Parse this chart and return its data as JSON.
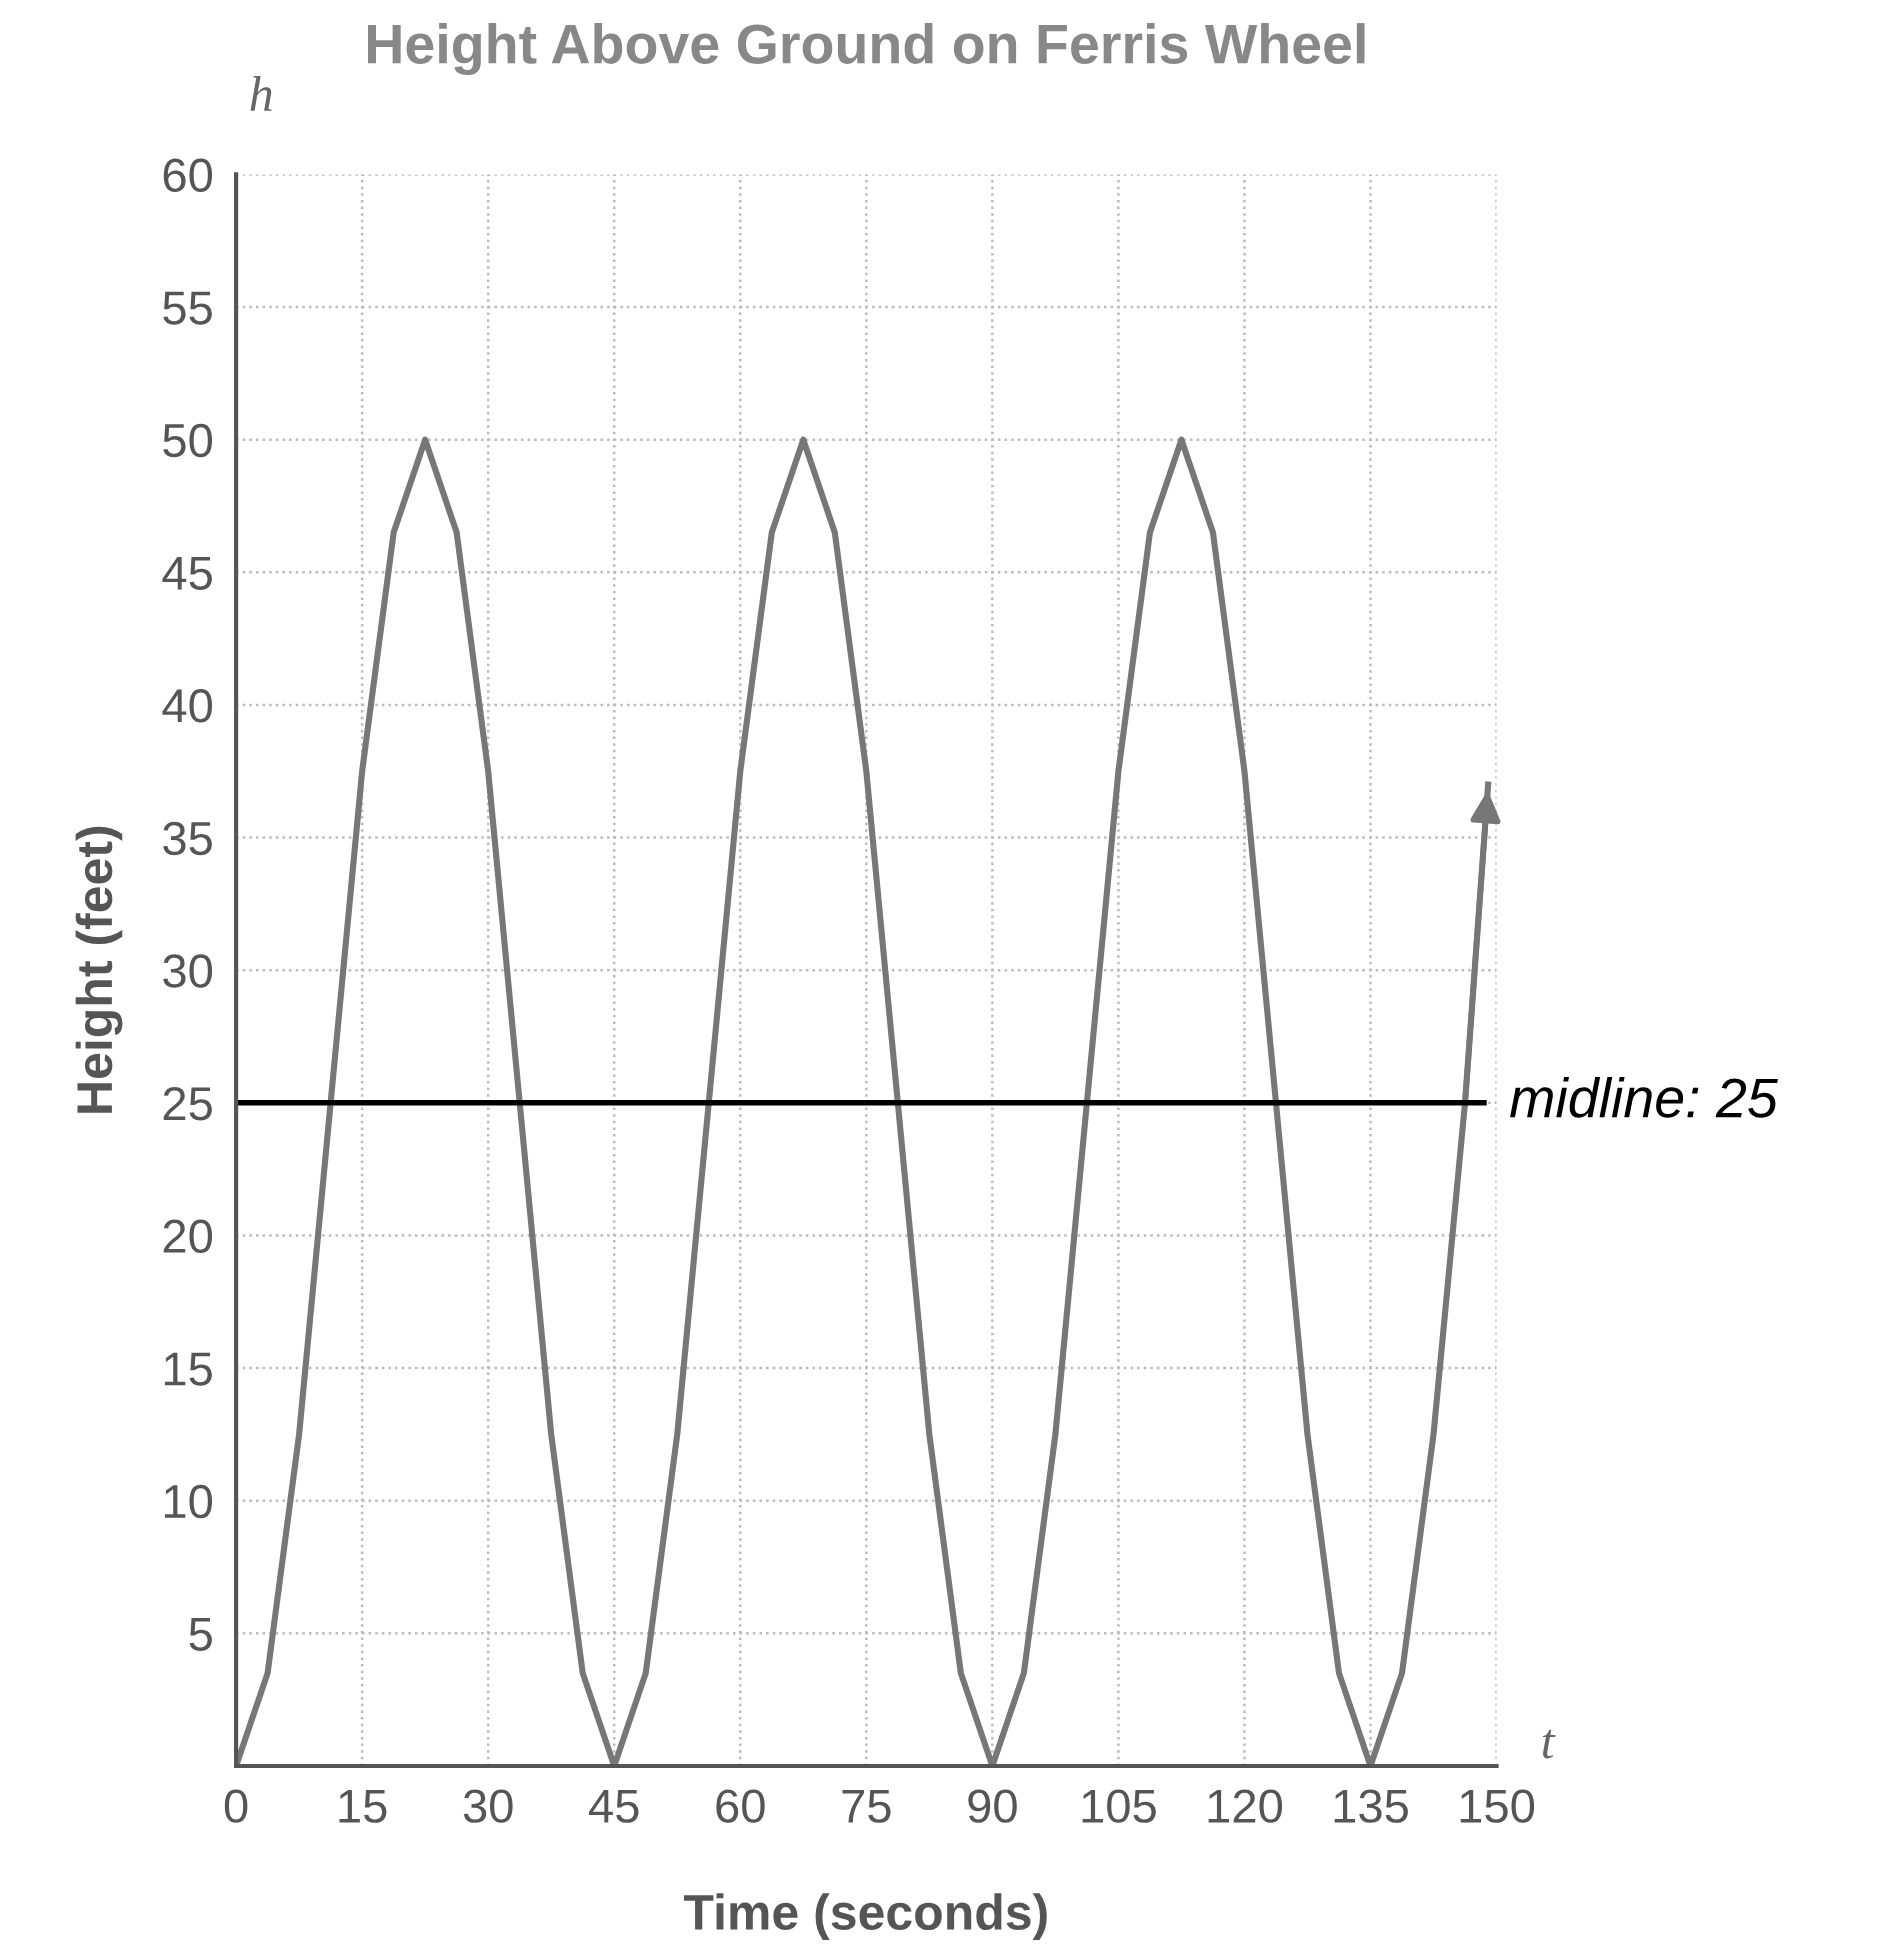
{
  "chart_data": {
    "type": "line",
    "title": "Height Above Ground on Ferris Wheel",
    "xlabel": "Time (seconds)",
    "ylabel": "Height (feet)",
    "annotations": [
      "h",
      "t"
    ],
    "x": [
      0,
      3.75,
      7.5,
      11.25,
      15,
      18.75,
      22.5,
      26.25,
      30,
      33.75,
      37.5,
      41.25,
      45,
      48.75,
      52.5,
      56.25,
      60,
      63.75,
      67.5,
      71.25,
      75,
      78.75,
      82.5,
      86.25,
      90,
      93.75,
      97.5,
      101.25,
      105,
      108.75,
      112.5,
      116.25,
      120,
      123.75,
      127.5,
      131.25,
      135,
      138.75,
      142.5,
      146.25,
      149
    ],
    "series": [
      {
        "color": "#777777",
        "values": [
          0,
          3.5,
          12.5,
          25,
          37.5,
          46.5,
          50,
          46.5,
          37.5,
          25,
          12.5,
          3.5,
          0,
          3.5,
          12.5,
          25,
          37.5,
          46.5,
          50,
          46.5,
          37.5,
          25,
          12.5,
          3.5,
          0,
          3.5,
          12.5,
          25,
          37.5,
          46.5,
          50,
          46.5,
          37.5,
          25,
          12.5,
          3.5,
          0,
          3.5,
          12.5,
          25,
          37
        ]
      }
    ],
    "xlim": [
      0,
      150
    ],
    "ylim": [
      0,
      60
    ],
    "xticks": [
      0,
      15,
      30,
      45,
      60,
      75,
      90,
      105,
      120,
      135,
      150
    ],
    "yticks": [
      {
        "value": 0,
        "label": null
      },
      5,
      10,
      15,
      20,
      25,
      30,
      35,
      40,
      45,
      50,
      55,
      60
    ],
    "ref_lines": [
      {
        "axis": "y",
        "value": 25,
        "label": "midline: 25",
        "color": "#000000"
      }
    ],
    "grid": true,
    "marker": "none",
    "line_style": "solid"
  }
}
